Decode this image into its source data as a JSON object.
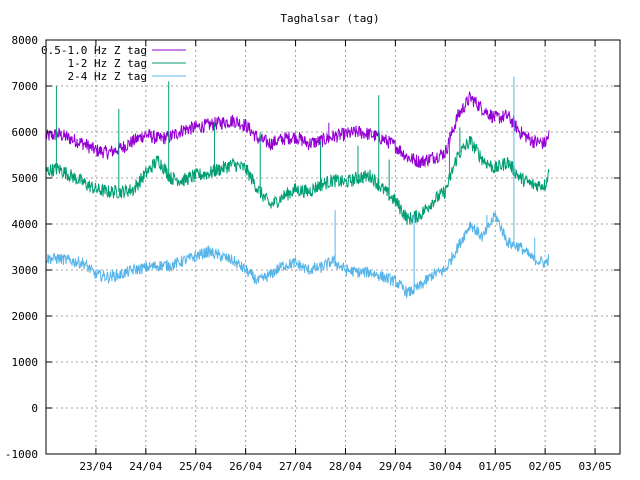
{
  "chart_data": {
    "type": "line",
    "title": "Taghalsar (tag)",
    "xlabel": "",
    "ylabel": "",
    "ylim": [
      -1000,
      8000
    ],
    "xlim": [
      "2020-04-22T00:00",
      "2020-05-03T12:00"
    ],
    "y_ticks": [
      -1000,
      0,
      1000,
      2000,
      3000,
      4000,
      5000,
      6000,
      7000,
      8000
    ],
    "x_ticks": [
      {
        "x": "2020-04-23",
        "label": "23/04"
      },
      {
        "x": "2020-04-24",
        "label": "24/04"
      },
      {
        "x": "2020-04-25",
        "label": "25/04"
      },
      {
        "x": "2020-04-26",
        "label": "26/04"
      },
      {
        "x": "2020-04-27",
        "label": "27/04"
      },
      {
        "x": "2020-04-28",
        "label": "28/04"
      },
      {
        "x": "2020-04-29",
        "label": "29/04"
      },
      {
        "x": "2020-04-30",
        "label": "30/04"
      },
      {
        "x": "2020-05-01",
        "label": "01/05"
      },
      {
        "x": "2020-05-02",
        "label": "02/05"
      },
      {
        "x": "2020-05-03",
        "label": "03/05"
      }
    ],
    "grid": true,
    "legend_position": "top-left",
    "series": [
      {
        "name": "0.5-1.0 Hz Z tag",
        "color": "#9400d3",
        "band": 300,
        "x": [
          "2020-04-22T00:00",
          "2020-04-22T06:00",
          "2020-04-22T12:00",
          "2020-04-22T18:00",
          "2020-04-23T00:00",
          "2020-04-23T06:00",
          "2020-04-23T12:00",
          "2020-04-23T18:00",
          "2020-04-24T00:00",
          "2020-04-24T06:00",
          "2020-04-24T12:00",
          "2020-04-24T18:00",
          "2020-04-25T00:00",
          "2020-04-25T06:00",
          "2020-04-25T12:00",
          "2020-04-25T18:00",
          "2020-04-26T00:00",
          "2020-04-26T06:00",
          "2020-04-26T12:00",
          "2020-04-26T18:00",
          "2020-04-27T00:00",
          "2020-04-27T06:00",
          "2020-04-27T12:00",
          "2020-04-27T18:00",
          "2020-04-28T00:00",
          "2020-04-28T06:00",
          "2020-04-28T12:00",
          "2020-04-28T18:00",
          "2020-04-29T00:00",
          "2020-04-29T06:00",
          "2020-04-29T12:00",
          "2020-04-29T18:00",
          "2020-04-30T00:00",
          "2020-04-30T06:00",
          "2020-04-30T12:00",
          "2020-04-30T18:00",
          "2020-05-01T00:00",
          "2020-05-01T06:00",
          "2020-05-01T12:00",
          "2020-05-01T18:00",
          "2020-05-02T00:00",
          "2020-05-02T02:00"
        ],
        "values": [
          5900,
          5950,
          5850,
          5750,
          5600,
          5550,
          5650,
          5800,
          5950,
          5850,
          5900,
          6050,
          6100,
          6150,
          6200,
          6250,
          6150,
          5850,
          5750,
          5850,
          5900,
          5750,
          5800,
          5900,
          5950,
          6000,
          5950,
          5850,
          5700,
          5450,
          5350,
          5450,
          5550,
          6350,
          6750,
          6500,
          6300,
          6350,
          6000,
          5800,
          5750,
          5950
        ]
      },
      {
        "name": "1-2 Hz Z tag",
        "color": "#009e73",
        "band": 300,
        "x": [
          "2020-04-22T00:00",
          "2020-04-22T06:00",
          "2020-04-22T12:00",
          "2020-04-22T18:00",
          "2020-04-23T00:00",
          "2020-04-23T06:00",
          "2020-04-23T12:00",
          "2020-04-23T18:00",
          "2020-04-24T00:00",
          "2020-04-24T06:00",
          "2020-04-24T12:00",
          "2020-04-24T18:00",
          "2020-04-25T00:00",
          "2020-04-25T06:00",
          "2020-04-25T12:00",
          "2020-04-25T18:00",
          "2020-04-26T00:00",
          "2020-04-26T06:00",
          "2020-04-26T12:00",
          "2020-04-26T18:00",
          "2020-04-27T00:00",
          "2020-04-27T06:00",
          "2020-04-27T12:00",
          "2020-04-27T18:00",
          "2020-04-28T00:00",
          "2020-04-28T06:00",
          "2020-04-28T12:00",
          "2020-04-28T18:00",
          "2020-04-29T00:00",
          "2020-04-29T06:00",
          "2020-04-29T12:00",
          "2020-04-29T18:00",
          "2020-04-30T00:00",
          "2020-04-30T06:00",
          "2020-04-30T12:00",
          "2020-04-30T18:00",
          "2020-05-01T00:00",
          "2020-05-01T06:00",
          "2020-05-01T12:00",
          "2020-05-01T18:00",
          "2020-05-02T00:00",
          "2020-05-02T02:00"
        ],
        "values": [
          5150,
          5200,
          5050,
          4900,
          4750,
          4700,
          4700,
          4750,
          5100,
          5400,
          5000,
          4950,
          5050,
          5100,
          5200,
          5300,
          5200,
          4750,
          4400,
          4600,
          4750,
          4700,
          4850,
          4950,
          4900,
          5000,
          5050,
          4750,
          4500,
          4100,
          4200,
          4500,
          4700,
          5500,
          5800,
          5400,
          5200,
          5350,
          5000,
          4850,
          4850,
          5150
        ]
      },
      {
        "name": "2-4 Hz Z tag",
        "color": "#56b4e9",
        "band": 250,
        "x": [
          "2020-04-22T00:00",
          "2020-04-22T06:00",
          "2020-04-22T12:00",
          "2020-04-22T18:00",
          "2020-04-23T00:00",
          "2020-04-23T06:00",
          "2020-04-23T12:00",
          "2020-04-23T18:00",
          "2020-04-24T00:00",
          "2020-04-24T06:00",
          "2020-04-24T12:00",
          "2020-04-24T18:00",
          "2020-04-25T00:00",
          "2020-04-25T06:00",
          "2020-04-25T12:00",
          "2020-04-25T18:00",
          "2020-04-26T00:00",
          "2020-04-26T06:00",
          "2020-04-26T12:00",
          "2020-04-26T18:00",
          "2020-04-27T00:00",
          "2020-04-27T06:00",
          "2020-04-27T12:00",
          "2020-04-27T18:00",
          "2020-04-28T00:00",
          "2020-04-28T06:00",
          "2020-04-28T12:00",
          "2020-04-28T18:00",
          "2020-04-29T00:00",
          "2020-04-29T06:00",
          "2020-04-29T12:00",
          "2020-04-29T18:00",
          "2020-04-30T00:00",
          "2020-04-30T06:00",
          "2020-04-30T12:00",
          "2020-04-30T18:00",
          "2020-05-01T00:00",
          "2020-05-01T06:00",
          "2020-05-01T12:00",
          "2020-05-01T18:00",
          "2020-05-02T00:00",
          "2020-05-02T02:00"
        ],
        "values": [
          3250,
          3250,
          3200,
          3150,
          2900,
          2850,
          2900,
          3000,
          3050,
          3100,
          3100,
          3200,
          3300,
          3400,
          3300,
          3200,
          3000,
          2750,
          2900,
          3100,
          3150,
          3000,
          3050,
          3200,
          3000,
          2950,
          2950,
          2850,
          2750,
          2500,
          2650,
          2900,
          3000,
          3500,
          4000,
          3700,
          4200,
          3600,
          3500,
          3250,
          3150,
          3250
        ]
      }
    ],
    "spikes": [
      {
        "series": 1,
        "x": "2020-04-22T05:00",
        "value": 7000
      },
      {
        "series": 1,
        "x": "2020-04-23T11:00",
        "value": 6500
      },
      {
        "series": 1,
        "x": "2020-04-24T11:00",
        "value": 7100
      },
      {
        "series": 1,
        "x": "2020-04-25T09:00",
        "value": 6200
      },
      {
        "series": 1,
        "x": "2020-04-26T07:00",
        "value": 6000
      },
      {
        "series": 1,
        "x": "2020-04-27T12:00",
        "value": 5800
      },
      {
        "series": 0,
        "x": "2020-04-27T16:00",
        "value": 6200
      },
      {
        "series": 2,
        "x": "2020-04-27T19:00",
        "value": 4300
      },
      {
        "series": 1,
        "x": "2020-04-28T06:00",
        "value": 5700
      },
      {
        "series": 1,
        "x": "2020-04-28T16:00",
        "value": 6800
      },
      {
        "series": 1,
        "x": "2020-04-28T21:00",
        "value": 5400
      },
      {
        "series": 2,
        "x": "2020-04-29T09:00",
        "value": 4200
      },
      {
        "series": 1,
        "x": "2020-04-30T02:00",
        "value": 6000
      },
      {
        "series": 1,
        "x": "2020-04-30T07:00",
        "value": 6100
      },
      {
        "series": 2,
        "x": "2020-04-30T20:00",
        "value": 4200
      },
      {
        "series": 2,
        "x": "2020-05-01T09:00",
        "value": 7200
      },
      {
        "series": 2,
        "x": "2020-05-01T19:00",
        "value": 3700
      }
    ]
  }
}
